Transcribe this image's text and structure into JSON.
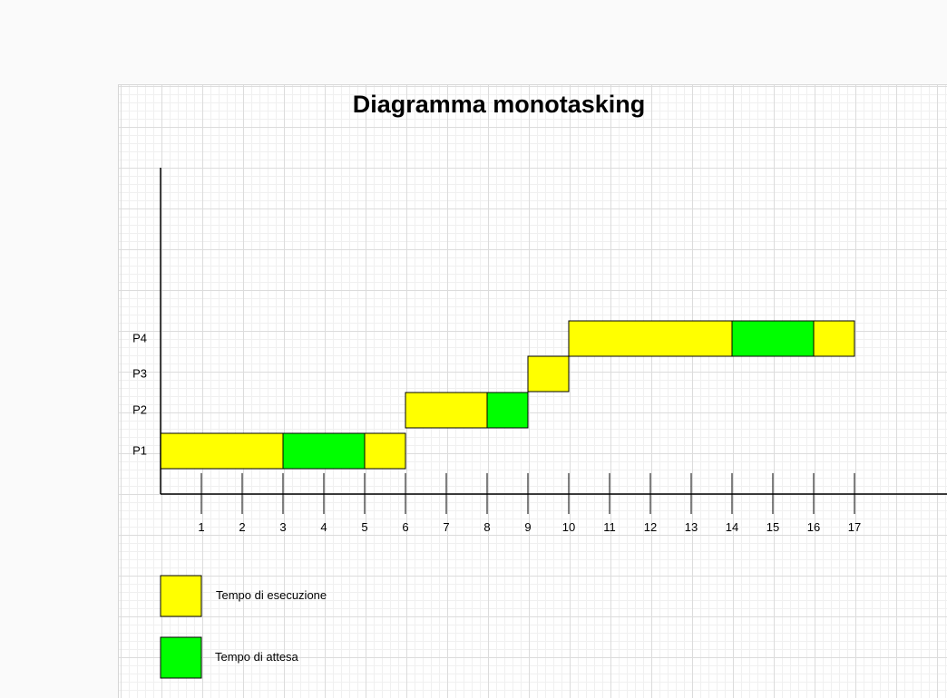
{
  "title": "Diagramma monotasking",
  "legend": {
    "execution_label": "Tempo di esecuzione",
    "wait_label": "Tempo di attesa"
  },
  "colors": {
    "execution": "#ffff00",
    "wait": "#00ff00",
    "axis": "#000000"
  },
  "chart_data": {
    "type": "gantt",
    "processes": [
      "P1",
      "P2",
      "P3",
      "P4"
    ],
    "x_ticks": [
      1,
      2,
      3,
      4,
      5,
      6,
      7,
      8,
      9,
      10,
      11,
      12,
      13,
      14,
      15,
      16,
      17
    ],
    "segments": [
      {
        "process": "P1",
        "start": 0,
        "end": 3,
        "kind": "execution"
      },
      {
        "process": "P1",
        "start": 3,
        "end": 5,
        "kind": "wait"
      },
      {
        "process": "P1",
        "start": 5,
        "end": 6,
        "kind": "execution"
      },
      {
        "process": "P2",
        "start": 6,
        "end": 8,
        "kind": "execution"
      },
      {
        "process": "P2",
        "start": 8,
        "end": 9,
        "kind": "wait"
      },
      {
        "process": "P3",
        "start": 9,
        "end": 10,
        "kind": "execution"
      },
      {
        "process": "P4",
        "start": 10,
        "end": 14,
        "kind": "execution"
      },
      {
        "process": "P4",
        "start": 14,
        "end": 16,
        "kind": "wait"
      },
      {
        "process": "P4",
        "start": 16,
        "end": 17,
        "kind": "execution"
      }
    ]
  }
}
